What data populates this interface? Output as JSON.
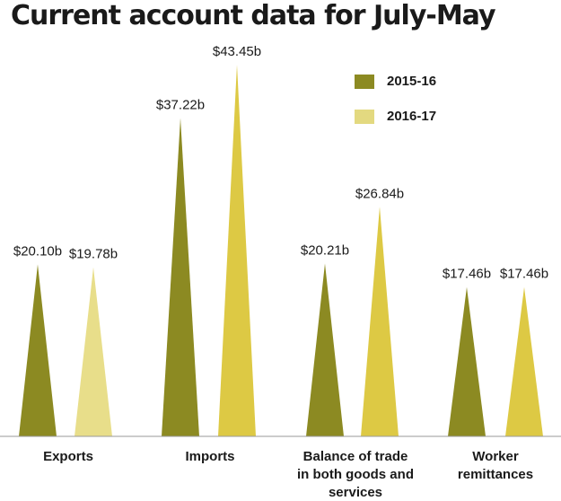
{
  "chart_data": {
    "type": "bar",
    "title": "Current account data for July-May",
    "categories": [
      "Exports",
      "Imports",
      "Balance of trade in both goods and services",
      "Worker remittances"
    ],
    "category_lines": [
      [
        "Exports"
      ],
      [
        "Imports"
      ],
      [
        "Balance of trade",
        "in both goods and",
        "services"
      ],
      [
        "Worker",
        "remittances"
      ]
    ],
    "series": [
      {
        "name": "2015-16",
        "color": "#8c8a22",
        "values": [
          20.1,
          37.22,
          20.21,
          17.46
        ],
        "labels": [
          "$20.10b",
          "$37.22b",
          "$20.21b",
          "$17.46b"
        ]
      },
      {
        "name": "2016-17",
        "color": "#e3d980",
        "values": [
          19.78,
          43.45,
          26.84,
          17.46
        ],
        "labels": [
          "$19.78b",
          "$43.45b",
          "$26.84b",
          "$17.46b"
        ]
      }
    ],
    "bar_colors": [
      [
        "#8c8a22",
        "#e8de8a"
      ],
      [
        "#8c8a22",
        "#ddc944"
      ],
      [
        "#8c8a22",
        "#ddc944"
      ],
      [
        "#8c8a22",
        "#ddc944"
      ]
    ],
    "legend": {
      "position": "top-right",
      "items": [
        {
          "label": "2015-16",
          "color": "#8c8a22"
        },
        {
          "label": "2016-17",
          "color": "#e3d980"
        }
      ]
    },
    "ylim": [
      0,
      45
    ],
    "grid": false,
    "bar_shape": "triangle"
  }
}
